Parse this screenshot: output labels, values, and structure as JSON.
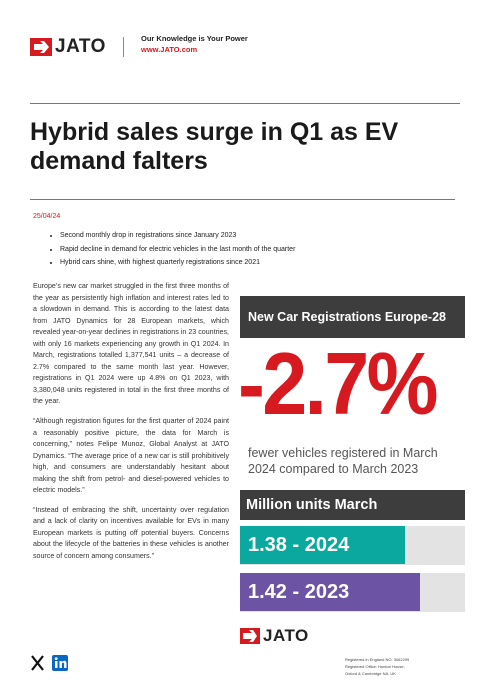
{
  "header": {
    "logo": "JATO",
    "tagline": "Our Knowledge is Your Power",
    "website": "www.JATO.com"
  },
  "title": "Hybrid sales surge in Q1 as EV demand falters",
  "date": "25/04/24",
  "bullets": [
    "Second monthly drop in registrations since January 2023",
    "Rapid decline in demand for electric vehicles in the last month of the quarter",
    "Hybrid cars shine, with highest quarterly registrations since 2021"
  ],
  "paragraphs": [
    "Europe’s new car market struggled in the first three months of the year as persistently high inflation and interest rates led to a slowdown in demand. This is according to the latest data from JATO Dynamics for 28 European markets, which revealed year-on-year declines in registrations in 23 countries, with only 16 markets experiencing any growth in Q1 2024. In March, registrations totalled 1,377,541 units – a decrease of 2.7% compared to the same month last year. However, registrations in Q1 2024 were up 4.8% on Q1 2023, with 3,380,048 units registered in total in the first three months of the year.",
    "“Although registration figures for the first quarter of 2024 paint a reasonably positive picture, the data for March is concerning,” notes Felipe Munoz, Global Analyst at JATO Dynamics. “The average price of a new car is still prohibitively high, and consumers are understandably hesitant about making the shift from petrol- and diesel-powered vehicles to electric models.”",
    "“Instead of embracing the shift, uncertainty over regulation and a lack of clarity on incentives available for EVs in many European markets is putting off potential buyers. Concerns about the lifecycle of the batteries in these vehicles is another source of concern among consumers.”"
  ],
  "infographic": {
    "heading": "New Car Registrations Europe-28",
    "headline": "-2.7%",
    "caption": "fewer vehicles registered in March 2024 compared to March 2023",
    "subheading": "Million units March",
    "bars": [
      "1.38 - 2024",
      "1.42 - 2023"
    ]
  },
  "footer": {
    "logo": "JATO",
    "legal": [
      "Registered in England NO. 3062299",
      "Registered Office: Hunton House,",
      "Oxford & Cambridge NA, UK"
    ]
  }
}
